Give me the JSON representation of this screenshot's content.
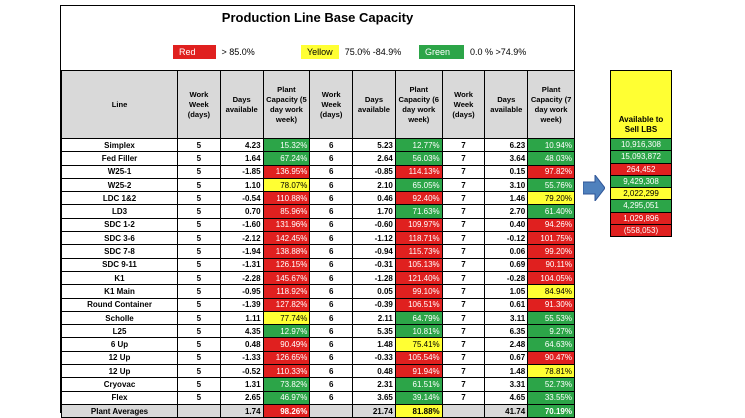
{
  "title": "Production Line Base Capacity",
  "legend": [
    {
      "label": "Red",
      "range": "> 85.0%",
      "color": "#e0201f"
    },
    {
      "label": "Yellow",
      "range": "75.0% -84.9%",
      "color": "#ffff33"
    },
    {
      "label": "Green",
      "range": "0.0 % >74.9%",
      "color": "#2ca548"
    }
  ],
  "columns": [
    "Line",
    "Work Week (days)",
    "Days available",
    "Plant Capacity (5 day work week)",
    "Work Week (days)",
    "Days available",
    "Plant Capacity (6 day work week)",
    "Work Week (days)",
    "Days available",
    "Plant Capacity (7 day work week)"
  ],
  "rows": [
    {
      "line": "Simplex",
      "w5": "5",
      "d5": "4.23",
      "p5": "15.32%",
      "c5": "green",
      "w6": "6",
      "d6": "5.23",
      "p6": "12.77%",
      "c6": "green",
      "w7": "7",
      "d7": "6.23",
      "p7": "10.94%",
      "c7": "green"
    },
    {
      "line": "Fed Filler",
      "w5": "5",
      "d5": "1.64",
      "p5": "67.24%",
      "c5": "green",
      "w6": "6",
      "d6": "2.64",
      "p6": "56.03%",
      "c6": "green",
      "w7": "7",
      "d7": "3.64",
      "p7": "48.03%",
      "c7": "green"
    },
    {
      "line": "W25-1",
      "w5": "5",
      "d5": "-1.85",
      "p5": "136.95%",
      "c5": "red",
      "w6": "6",
      "d6": "-0.85",
      "p6": "114.13%",
      "c6": "red",
      "w7": "7",
      "d7": "0.15",
      "p7": "97.82%",
      "c7": "red"
    },
    {
      "line": "W25-2",
      "w5": "5",
      "d5": "1.10",
      "p5": "78.07%",
      "c5": "yellow",
      "w6": "6",
      "d6": "2.10",
      "p6": "65.05%",
      "c6": "green",
      "w7": "7",
      "d7": "3.10",
      "p7": "55.76%",
      "c7": "green"
    },
    {
      "line": "LDC 1&2",
      "w5": "5",
      "d5": "-0.54",
      "p5": "110.88%",
      "c5": "red",
      "w6": "6",
      "d6": "0.46",
      "p6": "92.40%",
      "c6": "red",
      "w7": "7",
      "d7": "1.46",
      "p7": "79.20%",
      "c7": "yellow"
    },
    {
      "line": "LD3",
      "w5": "5",
      "d5": "0.70",
      "p5": "85.96%",
      "c5": "red",
      "w6": "6",
      "d6": "1.70",
      "p6": "71.63%",
      "c6": "green",
      "w7": "7",
      "d7": "2.70",
      "p7": "61.40%",
      "c7": "green"
    },
    {
      "line": "SDC 1-2",
      "w5": "5",
      "d5": "-1.60",
      "p5": "131.96%",
      "c5": "red",
      "w6": "6",
      "d6": "-0.60",
      "p6": "109.97%",
      "c6": "red",
      "w7": "7",
      "d7": "0.40",
      "p7": "94.26%",
      "c7": "red"
    },
    {
      "line": "SDC 3-6",
      "w5": "5",
      "d5": "-2.12",
      "p5": "142.45%",
      "c5": "red",
      "w6": "6",
      "d6": "-1.12",
      "p6": "118.71%",
      "c6": "red",
      "w7": "7",
      "d7": "-0.12",
      "p7": "101.75%",
      "c7": "red"
    },
    {
      "line": "SDC 7-8",
      "w5": "5",
      "d5": "-1.94",
      "p5": "138.88%",
      "c5": "red",
      "w6": "6",
      "d6": "-0.94",
      "p6": "115.73%",
      "c6": "red",
      "w7": "7",
      "d7": "0.06",
      "p7": "99.20%",
      "c7": "red"
    },
    {
      "line": "SDC 9-11",
      "w5": "5",
      "d5": "-1.31",
      "p5": "126.15%",
      "c5": "red",
      "w6": "6",
      "d6": "-0.31",
      "p6": "105.13%",
      "c6": "red",
      "w7": "7",
      "d7": "0.69",
      "p7": "90.11%",
      "c7": "red"
    },
    {
      "line": "K1",
      "w5": "5",
      "d5": "-2.28",
      "p5": "145.67%",
      "c5": "red",
      "w6": "6",
      "d6": "-1.28",
      "p6": "121.40%",
      "c6": "red",
      "w7": "7",
      "d7": "-0.28",
      "p7": "104.05%",
      "c7": "red"
    },
    {
      "line": "K1 Main",
      "w5": "5",
      "d5": "-0.95",
      "p5": "118.92%",
      "c5": "red",
      "w6": "6",
      "d6": "0.05",
      "p6": "99.10%",
      "c6": "red",
      "w7": "7",
      "d7": "1.05",
      "p7": "84.94%",
      "c7": "yellow"
    },
    {
      "line": "Round Container",
      "w5": "5",
      "d5": "-1.39",
      "p5": "127.82%",
      "c5": "red",
      "w6": "6",
      "d6": "-0.39",
      "p6": "106.51%",
      "c6": "red",
      "w7": "7",
      "d7": "0.61",
      "p7": "91.30%",
      "c7": "red"
    },
    {
      "line": "Scholle",
      "w5": "5",
      "d5": "1.11",
      "p5": "77.74%",
      "c5": "yellow",
      "w6": "6",
      "d6": "2.11",
      "p6": "64.79%",
      "c6": "green",
      "w7": "7",
      "d7": "3.11",
      "p7": "55.53%",
      "c7": "green"
    },
    {
      "line": "L25",
      "w5": "5",
      "d5": "4.35",
      "p5": "12.97%",
      "c5": "green",
      "w6": "6",
      "d6": "5.35",
      "p6": "10.81%",
      "c6": "green",
      "w7": "7",
      "d7": "6.35",
      "p7": "9.27%",
      "c7": "green"
    },
    {
      "line": "6 Up",
      "w5": "5",
      "d5": "0.48",
      "p5": "90.49%",
      "c5": "red",
      "w6": "6",
      "d6": "1.48",
      "p6": "75.41%",
      "c6": "yellow",
      "w7": "7",
      "d7": "2.48",
      "p7": "64.63%",
      "c7": "green"
    },
    {
      "line": "12 Up",
      "w5": "5",
      "d5": "-1.33",
      "p5": "126.65%",
      "c5": "red",
      "w6": "6",
      "d6": "-0.33",
      "p6": "105.54%",
      "c6": "red",
      "w7": "7",
      "d7": "0.67",
      "p7": "90.47%",
      "c7": "red"
    },
    {
      "line": "12 Up",
      "w5": "5",
      "d5": "-0.52",
      "p5": "110.33%",
      "c5": "red",
      "w6": "6",
      "d6": "0.48",
      "p6": "91.94%",
      "c6": "red",
      "w7": "7",
      "d7": "1.48",
      "p7": "78.81%",
      "c7": "yellow"
    },
    {
      "line": "Cryovac",
      "w5": "5",
      "d5": "1.31",
      "p5": "73.82%",
      "c5": "green",
      "w6": "6",
      "d6": "2.31",
      "p6": "61.51%",
      "c6": "green",
      "w7": "7",
      "d7": "3.31",
      "p7": "52.73%",
      "c7": "green"
    },
    {
      "line": "Flex",
      "w5": "5",
      "d5": "2.65",
      "p5": "46.97%",
      "c5": "green",
      "w6": "6",
      "d6": "3.65",
      "p6": "39.14%",
      "c6": "green",
      "w7": "7",
      "d7": "4.65",
      "p7": "33.55%",
      "c7": "green"
    }
  ],
  "averages": {
    "label": "Plant Averages",
    "d5": "1.74",
    "p5": "98.26%",
    "c5": "red",
    "d6": "21.74",
    "p6": "81.88%",
    "c6": "yellow",
    "d7": "41.74",
    "p7": "70.19%",
    "c7": "green"
  },
  "sell": {
    "header": "Available to Sell LBS",
    "values": [
      {
        "v": "10,916,308",
        "c": "green"
      },
      {
        "v": "15,093,872",
        "c": "green"
      },
      {
        "v": "264,452",
        "c": "red"
      },
      {
        "v": "9,429,308",
        "c": "green"
      },
      {
        "v": "2,022,299",
        "c": "yellow"
      },
      {
        "v": "4,295,051",
        "c": "green"
      },
      {
        "v": "1,029,896",
        "c": "red"
      },
      {
        "v": "(558,053)",
        "c": "red"
      }
    ]
  }
}
